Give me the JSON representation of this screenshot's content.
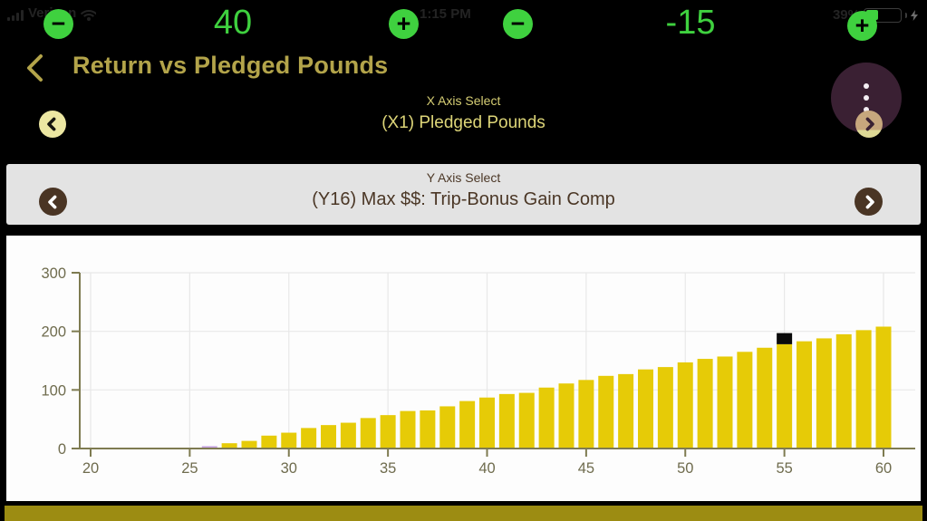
{
  "status_bar": {
    "carrier": "Verizon",
    "time": "1:15 PM",
    "battery_percent": "39%"
  },
  "stepper_bar": {
    "left_value": "40",
    "right_value": "-15",
    "minus_glyph": "−",
    "plus_glyph": "+"
  },
  "header": {
    "title": "Return vs Pledged Pounds"
  },
  "x_axis_select": {
    "label": "X Axis Select",
    "value": "(X1) Pledged Pounds"
  },
  "y_axis_select": {
    "label": "Y Axis Select",
    "value": "(Y16) Max $$: Trip-Bonus Gain Comp"
  },
  "colors": {
    "accent_green": "#3fd13f",
    "title_gold": "#b3a44a",
    "select_cream": "#ece7a2",
    "menu_purple": "#3a2033",
    "yselect_bg": "#e3e3e3",
    "yselect_brown": "#4a3524",
    "bottom_bar": "#9c8c12"
  },
  "chart_data": {
    "type": "bar",
    "title": "Return vs Pledged Pounds",
    "xlabel": "Pledged Pounds",
    "ylabel": "Max $$: Trip-Bonus Gain Comp",
    "x": [
      26,
      27,
      28,
      29,
      30,
      31,
      32,
      33,
      34,
      35,
      36,
      37,
      38,
      39,
      40,
      41,
      42,
      43,
      44,
      45,
      46,
      47,
      48,
      49,
      50,
      51,
      52,
      53,
      54,
      55,
      56,
      57,
      58,
      59,
      60
    ],
    "values": [
      4,
      9,
      13,
      22,
      27,
      35,
      40,
      44,
      52,
      57,
      64,
      65,
      72,
      81,
      87,
      93,
      95,
      104,
      111,
      117,
      124,
      127,
      135,
      139,
      147,
      153,
      157,
      165,
      172,
      178,
      183,
      188,
      195,
      202,
      208
    ],
    "x_ticks": [
      20,
      25,
      30,
      35,
      40,
      45,
      50,
      55,
      60
    ],
    "y_ticks": [
      0,
      100,
      200,
      300
    ],
    "ylim": [
      0,
      300
    ],
    "grid": true,
    "bar_color": "#e6cb07",
    "special_bar": {
      "x": 26,
      "color": "#c7a3e2"
    },
    "marker": {
      "x": 55,
      "value_bottom": 178,
      "value_top": 197,
      "color": "#0a0a0a"
    },
    "axis_color": "#7e7b51",
    "grid_color": "#e8e8e8",
    "tick_label_color": "#6f6c4e"
  }
}
